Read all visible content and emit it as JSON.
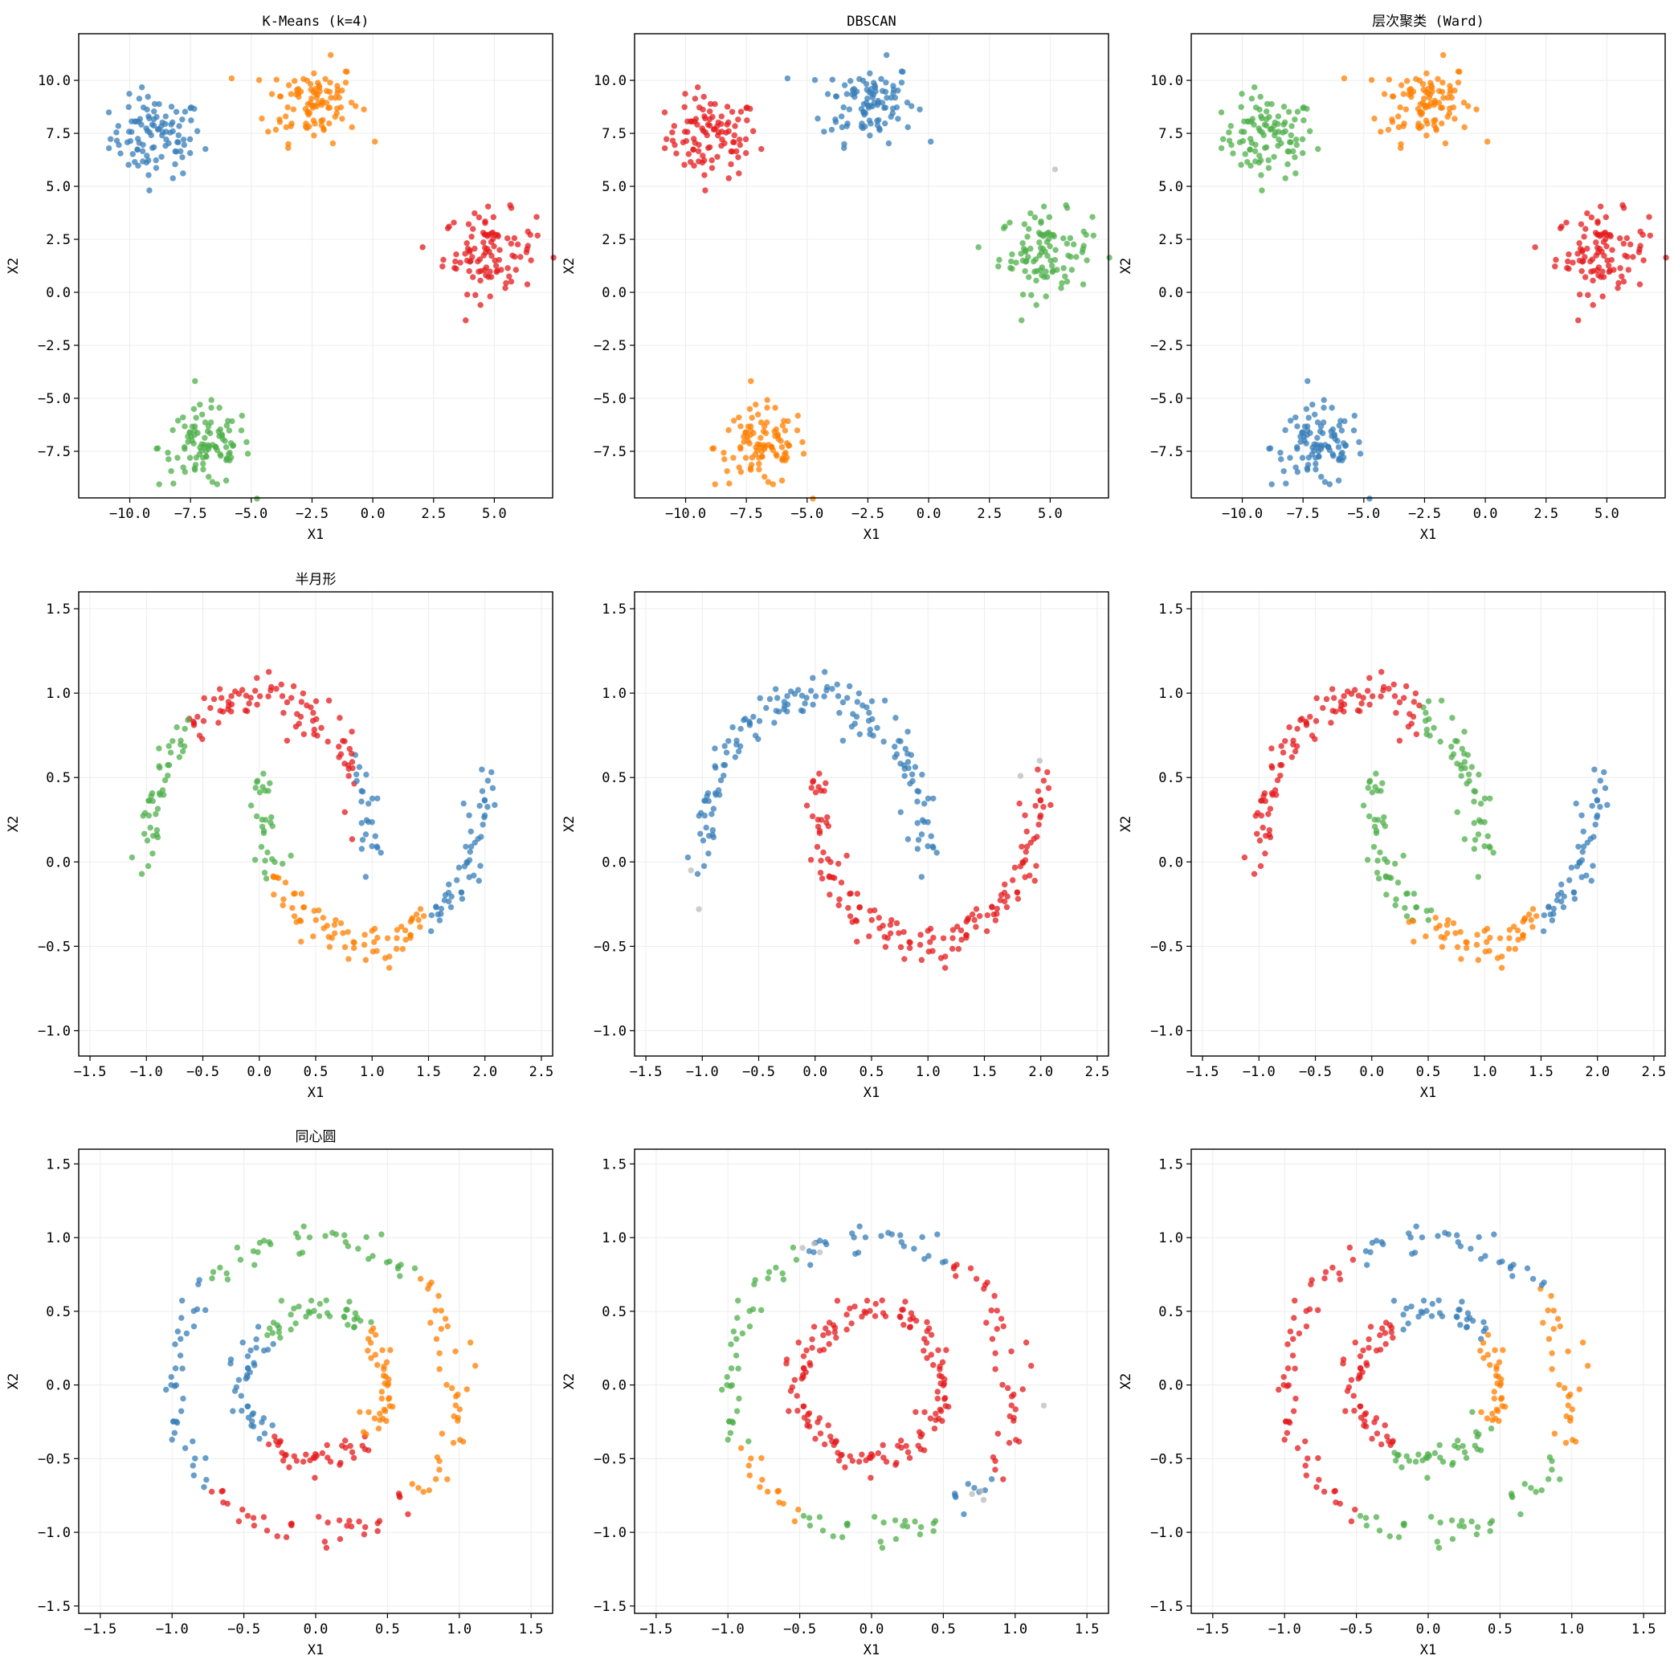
{
  "colors": {
    "red": "#e41a1c",
    "blue": "#377eb8",
    "green": "#4daf4a",
    "orange": "#ff7f00",
    "noise": "#bbbbbb",
    "grid": "#ececec"
  },
  "chart_data": [
    {
      "type": "scatter",
      "dataset": "blobs",
      "title": "K-Means (k=4)",
      "xlabel": "X1",
      "ylabel": "X2",
      "xlim": [
        -12.1,
        7.4
      ],
      "ylim": [
        -9.7,
        12.2
      ],
      "xticks": [
        -10.0,
        -7.5,
        -5.0,
        -2.5,
        0.0,
        2.5,
        5.0
      ],
      "yticks": [
        -7.5,
        -5.0,
        -2.5,
        0.0,
        2.5,
        5.0,
        7.5,
        10.0
      ],
      "xtick_labels": [
        "−10.0",
        "−7.5",
        "−5.0",
        "−2.5",
        "0.0",
        "2.5",
        "5.0"
      ],
      "ytick_labels": [
        "−7.5",
        "−5.0",
        "−2.5",
        "0.0",
        "2.5",
        "5.0",
        "7.5",
        "10.0"
      ],
      "grid": true,
      "clusters": [
        {
          "color": "blue",
          "center": [
            -8.9,
            7.3
          ]
        },
        {
          "color": "orange",
          "center": [
            -2.5,
            9.0
          ]
        },
        {
          "color": "red",
          "center": [
            4.8,
            1.9
          ]
        },
        {
          "color": "green",
          "center": [
            -6.9,
            -7.3
          ]
        }
      ]
    },
    {
      "type": "scatter",
      "dataset": "blobs",
      "title": "DBSCAN",
      "xlabel": "X1",
      "ylabel": "X2",
      "xlim": [
        -12.1,
        7.4
      ],
      "ylim": [
        -9.7,
        12.2
      ],
      "xticks": [
        -10.0,
        -7.5,
        -5.0,
        -2.5,
        0.0,
        2.5,
        5.0
      ],
      "yticks": [
        -7.5,
        -5.0,
        -2.5,
        0.0,
        2.5,
        5.0,
        7.5,
        10.0
      ],
      "xtick_labels": [
        "−10.0",
        "−7.5",
        "−5.0",
        "−2.5",
        "0.0",
        "2.5",
        "5.0"
      ],
      "ytick_labels": [
        "−7.5",
        "−5.0",
        "−2.5",
        "0.0",
        "2.5",
        "5.0",
        "7.5",
        "10.0"
      ],
      "grid": true,
      "clusters": [
        {
          "color": "red",
          "center": [
            -8.9,
            7.3
          ]
        },
        {
          "color": "blue",
          "center": [
            -2.5,
            9.0
          ]
        },
        {
          "color": "green",
          "center": [
            4.8,
            1.9
          ]
        },
        {
          "color": "orange",
          "center": [
            -6.9,
            -7.3
          ]
        }
      ],
      "noise_points": [
        [
          5.2,
          5.8
        ]
      ]
    },
    {
      "type": "scatter",
      "dataset": "blobs",
      "title": "层次聚类 (Ward)",
      "xlabel": "X1",
      "ylabel": "X2",
      "xlim": [
        -12.1,
        7.4
      ],
      "ylim": [
        -9.7,
        12.2
      ],
      "xticks": [
        -10.0,
        -7.5,
        -5.0,
        -2.5,
        0.0,
        2.5,
        5.0
      ],
      "yticks": [
        -7.5,
        -5.0,
        -2.5,
        0.0,
        2.5,
        5.0,
        7.5,
        10.0
      ],
      "xtick_labels": [
        "−10.0",
        "−7.5",
        "−5.0",
        "−2.5",
        "0.0",
        "2.5",
        "5.0"
      ],
      "ytick_labels": [
        "−7.5",
        "−5.0",
        "−2.5",
        "0.0",
        "2.5",
        "5.0",
        "7.5",
        "10.0"
      ],
      "grid": true,
      "clusters": [
        {
          "color": "green",
          "center": [
            -8.9,
            7.3
          ]
        },
        {
          "color": "orange",
          "center": [
            -2.5,
            9.0
          ]
        },
        {
          "color": "red",
          "center": [
            4.8,
            1.9
          ]
        },
        {
          "color": "blue",
          "center": [
            -6.9,
            -7.3
          ]
        }
      ]
    },
    {
      "type": "scatter",
      "dataset": "moons",
      "title": "半月形",
      "xlabel": "X1",
      "ylabel": "X2",
      "xlim": [
        -1.6,
        2.6
      ],
      "ylim": [
        -1.15,
        1.6
      ],
      "xticks": [
        -1.5,
        -1.0,
        -0.5,
        0.0,
        0.5,
        1.0,
        1.5,
        2.0,
        2.5
      ],
      "yticks": [
        -1.0,
        -0.5,
        0.0,
        0.5,
        1.0,
        1.5
      ],
      "xtick_labels": [
        "−1.5",
        "−1.0",
        "−0.5",
        "0.0",
        "0.5",
        "1.0",
        "1.5",
        "2.0",
        "2.5"
      ],
      "ytick_labels": [
        "−1.0",
        "−0.5",
        "0.0",
        "0.5",
        "1.0",
        "1.5"
      ],
      "grid": true,
      "labeling": "kmeans4"
    },
    {
      "type": "scatter",
      "dataset": "moons",
      "title": "",
      "xlabel": "X1",
      "ylabel": "X2",
      "xlim": [
        -1.6,
        2.6
      ],
      "ylim": [
        -1.15,
        1.6
      ],
      "xticks": [
        -1.5,
        -1.0,
        -0.5,
        0.0,
        0.5,
        1.0,
        1.5,
        2.0,
        2.5
      ],
      "yticks": [
        -1.0,
        -0.5,
        0.0,
        0.5,
        1.0,
        1.5
      ],
      "xtick_labels": [
        "−1.5",
        "−1.0",
        "−0.5",
        "0.0",
        "0.5",
        "1.0",
        "1.5",
        "2.0",
        "2.5"
      ],
      "ytick_labels": [
        "−1.0",
        "−0.5",
        "0.0",
        "0.5",
        "1.0",
        "1.5"
      ],
      "grid": true,
      "labeling": "dbscan",
      "noise_points": [
        [
          -1.1,
          -0.05
        ],
        [
          -1.03,
          -0.28
        ],
        [
          1.82,
          0.51
        ],
        [
          1.99,
          0.6
        ]
      ]
    },
    {
      "type": "scatter",
      "dataset": "moons",
      "title": "",
      "xlabel": "X1",
      "ylabel": "X2",
      "xlim": [
        -1.6,
        2.6
      ],
      "ylim": [
        -1.15,
        1.6
      ],
      "xticks": [
        -1.5,
        -1.0,
        -0.5,
        0.0,
        0.5,
        1.0,
        1.5,
        2.0,
        2.5
      ],
      "yticks": [
        -1.0,
        -0.5,
        0.0,
        0.5,
        1.0,
        1.5
      ],
      "xtick_labels": [
        "−1.5",
        "−1.0",
        "−0.5",
        "0.0",
        "0.5",
        "1.0",
        "1.5",
        "2.0",
        "2.5"
      ],
      "ytick_labels": [
        "−1.0",
        "−0.5",
        "0.0",
        "0.5",
        "1.0",
        "1.5"
      ],
      "grid": true,
      "labeling": "ward4"
    },
    {
      "type": "scatter",
      "dataset": "circles",
      "title": "同心圆",
      "xlabel": "X1",
      "ylabel": "X2",
      "xlim": [
        -1.65,
        1.65
      ],
      "ylim": [
        -1.55,
        1.6
      ],
      "xticks": [
        -1.5,
        -1.0,
        -0.5,
        0.0,
        0.5,
        1.0,
        1.5
      ],
      "yticks": [
        -1.5,
        -1.0,
        -0.5,
        0.0,
        0.5,
        1.0,
        1.5
      ],
      "xtick_labels": [
        "−1.5",
        "−1.0",
        "−0.5",
        "0.0",
        "0.5",
        "1.0",
        "1.5"
      ],
      "ytick_labels": [
        "−1.5",
        "−1.0",
        "−0.5",
        "0.0",
        "0.5",
        "1.0",
        "1.5"
      ],
      "grid": true,
      "labeling": "kmeans4"
    },
    {
      "type": "scatter",
      "dataset": "circles",
      "title": "",
      "xlabel": "X1",
      "ylabel": "X2",
      "xlim": [
        -1.65,
        1.65
      ],
      "ylim": [
        -1.55,
        1.6
      ],
      "xticks": [
        -1.5,
        -1.0,
        -0.5,
        0.0,
        0.5,
        1.0,
        1.5
      ],
      "yticks": [
        -1.5,
        -1.0,
        -0.5,
        0.0,
        0.5,
        1.0,
        1.5
      ],
      "xtick_labels": [
        "−1.5",
        "−1.0",
        "−0.5",
        "0.0",
        "0.5",
        "1.0",
        "1.5"
      ],
      "ytick_labels": [
        "−1.5",
        "−1.0",
        "−0.5",
        "0.0",
        "0.5",
        "1.0",
        "1.5"
      ],
      "grid": true,
      "labeling": "dbscan",
      "noise_points": [
        [
          -0.48,
          0.93
        ],
        [
          -0.4,
          0.96
        ],
        [
          -0.36,
          0.9
        ],
        [
          0.7,
          -0.74
        ],
        [
          0.76,
          -0.72
        ],
        [
          0.78,
          -0.78
        ],
        [
          1.2,
          -0.14
        ]
      ]
    },
    {
      "type": "scatter",
      "dataset": "circles",
      "title": "",
      "xlabel": "X1",
      "ylabel": "X2",
      "xlim": [
        -1.65,
        1.65
      ],
      "ylim": [
        -1.55,
        1.6
      ],
      "xticks": [
        -1.5,
        -1.0,
        -0.5,
        0.0,
        0.5,
        1.0,
        1.5
      ],
      "yticks": [
        -1.5,
        -1.0,
        -0.5,
        0.0,
        0.5,
        1.0,
        1.5
      ],
      "xtick_labels": [
        "−1.5",
        "−1.0",
        "−0.5",
        "0.0",
        "0.5",
        "1.0",
        "1.5"
      ],
      "ytick_labels": [
        "−1.5",
        "−1.0",
        "−0.5",
        "0.0",
        "0.5",
        "1.0",
        "1.5"
      ],
      "grid": true,
      "labeling": "ward4"
    }
  ]
}
